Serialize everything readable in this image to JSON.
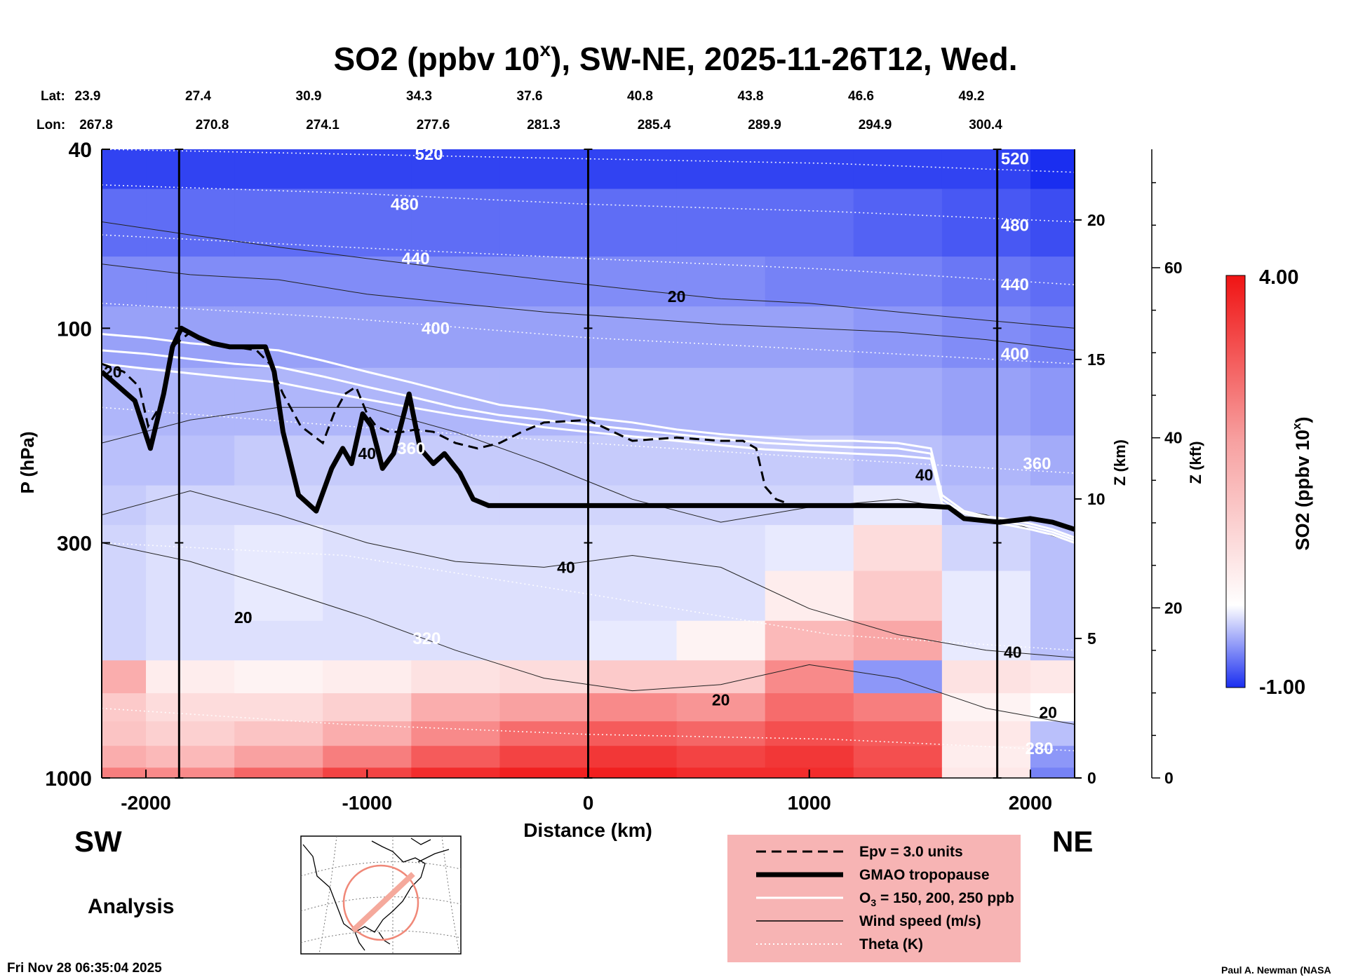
{
  "chart_data": {
    "type": "heatmap",
    "title": "SO2 (ppbv 10",
    "title_superscript": "x",
    "title_suffix": "), SW-NE, 2025-11-26T12, Wed.",
    "xlabel": "Distance (km)",
    "ylabel": "P (hPa)",
    "z_km_label": "Z (km)",
    "z_kft_label": "Z (kft)",
    "colorbar_label": "SO2 (ppbv 10",
    "colorbar_label_sup": "x",
    "colorbar_label_end": ")",
    "colorbar_range": [
      -1.0,
      4.0
    ],
    "colorbar_max_label": "4.00",
    "colorbar_min_label": "-1.00",
    "xlim": [
      -2200,
      2200
    ],
    "ylim": [
      1000,
      40
    ],
    "x_ticks": [
      -2000,
      -1000,
      0,
      1000,
      2000
    ],
    "x_tick_labels": [
      "-2000",
      "-1000",
      "0",
      "1000",
      "2000"
    ],
    "y_ticks": [
      40,
      100,
      300,
      1000
    ],
    "y_tick_labels": [
      "40",
      "100",
      "300",
      "1000"
    ],
    "z_km_ticks": [
      0,
      5,
      10,
      15,
      20
    ],
    "z_km_tick_labels": [
      "0",
      "5",
      "10",
      "15",
      "20"
    ],
    "z_kft_ticks": [
      0,
      20,
      40,
      60
    ],
    "z_kft_tick_labels": [
      "0",
      "20",
      "40",
      "60"
    ],
    "lat_label": "Lat:",
    "lon_label": "Lon:",
    "lat_values": [
      "23.9",
      "27.4",
      "30.9",
      "34.3",
      "37.6",
      "40.8",
      "43.8",
      "46.6",
      "49.2"
    ],
    "lon_values": [
      "267.8",
      "270.8",
      "274.1",
      "277.6",
      "281.3",
      "285.4",
      "289.9",
      "294.9",
      "300.4"
    ],
    "marker_distances_km": [
      -1850,
      0,
      1850
    ],
    "tropopause": {
      "name": "GMAO tropopause",
      "x": [
        -2200,
        -2050,
        -1980,
        -1920,
        -1880,
        -1840,
        -1760,
        -1700,
        -1620,
        -1460,
        -1420,
        -1380,
        -1310,
        -1230,
        -1160,
        -1110,
        -1070,
        -1020,
        -980,
        -930,
        -880,
        -810,
        -760,
        -700,
        -650,
        -580,
        -520,
        -450,
        -300,
        0,
        500,
        1000,
        1500,
        1630,
        1700,
        1860,
        2000,
        2100,
        2200
      ],
      "p": [
        125,
        145,
        185,
        140,
        110,
        100,
        105,
        108,
        110,
        110,
        125,
        170,
        235,
        255,
        205,
        185,
        200,
        155,
        165,
        205,
        190,
        140,
        185,
        200,
        190,
        210,
        240,
        248,
        248,
        248,
        248,
        248,
        248,
        250,
        265,
        270,
        265,
        270,
        280
      ]
    },
    "epv_contour": {
      "name": "Epv = 3.0 units",
      "x": [
        -2200,
        -2100,
        -2030,
        -1990,
        -1940,
        -1880,
        -1800,
        -1700,
        -1600,
        -1500,
        -1440,
        -1380,
        -1300,
        -1200,
        -1150,
        -1100,
        -1050,
        -1000,
        -960,
        -900,
        -840,
        -780,
        -700,
        -600,
        -500,
        -400,
        -300,
        -200,
        0,
        200,
        400,
        600,
        700,
        760,
        800,
        850,
        900
      ],
      "p": [
        120,
        125,
        135,
        165,
        150,
        110,
        102,
        108,
        110,
        112,
        120,
        140,
        165,
        180,
        155,
        140,
        135,
        155,
        165,
        170,
        170,
        168,
        170,
        180,
        185,
        180,
        170,
        162,
        160,
        178,
        175,
        178,
        178,
        185,
        225,
        240,
        245
      ]
    },
    "ozone_contours": {
      "name": "O3 = 150, 200, 250 ppb",
      "levels": [
        150,
        200,
        250
      ],
      "x": [
        -2200,
        -2000,
        -1800,
        -1600,
        -1400,
        -1200,
        -1000,
        -800,
        -600,
        -400,
        -200,
        0,
        200,
        400,
        600,
        800,
        1000,
        1200,
        1400,
        1550,
        1600,
        1700,
        1800,
        1900,
        2000,
        2100,
        2200
      ],
      "p": [
        [
          103,
          105,
          108,
          110,
          112,
          118,
          125,
          132,
          140,
          148,
          152,
          158,
          162,
          168,
          172,
          175,
          178,
          178,
          180,
          185,
          235,
          255,
          262,
          266,
          272,
          280,
          292
        ],
        [
          112,
          114,
          117,
          120,
          122,
          128,
          135,
          142,
          150,
          156,
          160,
          164,
          168,
          172,
          176,
          180,
          182,
          184,
          185,
          190,
          240,
          258,
          265,
          270,
          276,
          284,
          296
        ],
        [
          120,
          123,
          126,
          129,
          132,
          138,
          144,
          150,
          156,
          161,
          166,
          170,
          174,
          178,
          182,
          186,
          188,
          190,
          192,
          195,
          245,
          262,
          268,
          274,
          280,
          288,
          300
        ]
      ]
    },
    "wind_speed_contours": {
      "name": "Wind speed (m/s)",
      "label_values": [
        "20",
        "40",
        "40",
        "20",
        "40",
        "40",
        "20",
        "20",
        "20",
        "20"
      ],
      "label_points": [
        {
          "x": 400,
          "p": 85
        },
        {
          "x": -1000,
          "p": 190
        },
        {
          "x": 1520,
          "p": 212
        },
        {
          "x": -1560,
          "p": 440
        },
        {
          "x": -100,
          "p": 340
        },
        {
          "x": 1920,
          "p": 525
        },
        {
          "x": 600,
          "p": 670
        },
        {
          "x": -2150,
          "p": 125
        },
        {
          "x": 2080,
          "p": 715
        },
        {
          "x": -1560,
          "p": 440
        }
      ],
      "levels_x": [
        -2200,
        -1800,
        -1400,
        -1000,
        -600,
        -200,
        200,
        600,
        1000,
        1400,
        1800,
        2200
      ],
      "lines_p": [
        [
          58,
          62,
          66,
          70,
          74,
          78,
          82,
          86,
          88,
          92,
          96,
          100
        ],
        [
          72,
          76,
          78,
          84,
          88,
          92,
          95,
          98,
          100,
          102,
          106,
          112
        ],
        [
          180,
          160,
          150,
          150,
          170,
          200,
          240,
          270,
          250,
          240,
          260,
          300
        ],
        [
          260,
          230,
          260,
          300,
          330,
          340,
          320,
          340,
          420,
          480,
          520,
          540
        ],
        [
          300,
          330,
          380,
          440,
          520,
          600,
          640,
          620,
          560,
          600,
          700,
          760
        ]
      ]
    },
    "theta_contours": {
      "name": "Theta (K)",
      "levels": [
        520,
        480,
        440,
        400,
        360,
        320,
        280
      ],
      "label_values": [
        "520",
        "480",
        "440",
        "400",
        "360",
        "320",
        "520",
        "480",
        "440",
        "400",
        "360",
        "280"
      ],
      "label_points": [
        {
          "x": -720,
          "p": 41
        },
        {
          "x": -830,
          "p": 53
        },
        {
          "x": -780,
          "p": 70
        },
        {
          "x": -690,
          "p": 100
        },
        {
          "x": -800,
          "p": 185
        },
        {
          "x": -730,
          "p": 490
        },
        {
          "x": 1930,
          "p": 42
        },
        {
          "x": 1930,
          "p": 59
        },
        {
          "x": 1930,
          "p": 80
        },
        {
          "x": 1930,
          "p": 114
        },
        {
          "x": 2030,
          "p": 200
        },
        {
          "x": 2040,
          "p": 860
        }
      ],
      "x": [
        -2200,
        -1100,
        0,
        1100,
        2200
      ],
      "p": [
        [
          40,
          41,
          42,
          43,
          45
        ],
        [
          48,
          50,
          53,
          55,
          58
        ],
        [
          62,
          66,
          70,
          74,
          80
        ],
        [
          88,
          95,
          105,
          112,
          120
        ],
        [
          150,
          165,
          180,
          195,
          210
        ],
        [
          300,
          320,
          390,
          480,
          520
        ],
        [
          700,
          760,
          800,
          820,
          870
        ]
      ]
    },
    "so2_field": {
      "x": [
        -2200,
        -1800,
        -1400,
        -1000,
        -600,
        -200,
        200,
        600,
        1000,
        1400,
        1800,
        2200
      ],
      "p": [
        40,
        60,
        80,
        100,
        150,
        200,
        250,
        300,
        400,
        500,
        600,
        700,
        800,
        900,
        1000
      ],
      "values": [
        [
          -0.9,
          -0.9,
          -0.9,
          -0.9,
          -0.9,
          -0.9,
          -0.9,
          -0.9,
          -0.9,
          -0.9,
          -0.9,
          -1.0
        ],
        [
          -0.7,
          -0.7,
          -0.7,
          -0.7,
          -0.7,
          -0.7,
          -0.7,
          -0.7,
          -0.7,
          -0.75,
          -0.8,
          -0.85
        ],
        [
          -0.55,
          -0.55,
          -0.55,
          -0.55,
          -0.55,
          -0.55,
          -0.55,
          -0.55,
          -0.6,
          -0.6,
          -0.65,
          -0.7
        ],
        [
          -0.45,
          -0.45,
          -0.45,
          -0.45,
          -0.45,
          -0.45,
          -0.45,
          -0.45,
          -0.45,
          -0.5,
          -0.55,
          -0.6
        ],
        [
          -0.35,
          -0.35,
          -0.35,
          -0.35,
          -0.35,
          -0.35,
          -0.35,
          -0.35,
          -0.35,
          -0.4,
          -0.45,
          -0.5
        ],
        [
          -0.3,
          -0.3,
          -0.25,
          -0.25,
          -0.25,
          -0.25,
          -0.25,
          -0.25,
          -0.25,
          -0.3,
          -0.35,
          -0.4
        ],
        [
          -0.25,
          -0.2,
          -0.2,
          -0.2,
          -0.2,
          -0.2,
          -0.2,
          -0.2,
          -0.2,
          -0.1,
          -0.3,
          -0.3
        ],
        [
          -0.2,
          -0.15,
          -0.1,
          -0.15,
          -0.15,
          -0.15,
          -0.15,
          -0.15,
          -0.1,
          0.6,
          -0.2,
          -0.3
        ],
        [
          -0.2,
          -0.15,
          -0.1,
          -0.15,
          -0.15,
          -0.15,
          -0.15,
          -0.15,
          0.3,
          0.9,
          -0.1,
          -0.3
        ],
        [
          -0.2,
          -0.15,
          -0.15,
          -0.15,
          -0.15,
          -0.15,
          -0.1,
          0.2,
          1.2,
          1.5,
          -0.1,
          -0.3
        ],
        [
          1.4,
          0.3,
          0.2,
          0.3,
          0.5,
          0.6,
          0.9,
          0.9,
          2.0,
          -0.5,
          0.5,
          0.4
        ],
        [
          0.9,
          0.6,
          0.6,
          0.8,
          1.4,
          1.6,
          2.0,
          1.8,
          2.5,
          2.2,
          0.2,
          0.0
        ],
        [
          1.0,
          0.8,
          1.0,
          1.4,
          2.0,
          2.5,
          2.8,
          2.6,
          3.0,
          2.8,
          0.4,
          -0.3
        ],
        [
          1.4,
          1.2,
          1.6,
          2.2,
          2.8,
          3.2,
          3.4,
          3.2,
          3.4,
          3.0,
          0.3,
          -0.5
        ],
        [
          2.2,
          2.0,
          2.6,
          3.2,
          3.6,
          3.8,
          3.8,
          3.6,
          3.6,
          3.2,
          0.4,
          -0.6
        ]
      ]
    },
    "legend": [
      {
        "label": "Epv = 3.0 units",
        "style": "dashed"
      },
      {
        "label": "GMAO tropopause",
        "style": "thick"
      },
      {
        "label": "O",
        "label_sub": "3",
        "label_rest": " = 150, 200, 250 ppb",
        "style": "white"
      },
      {
        "label": "Wind speed (m/s)",
        "style": "thin"
      },
      {
        "label": "Theta (K)",
        "style": "dotted"
      }
    ],
    "legend_placement": "bottom-center",
    "sw_label": "SW",
    "ne_label": "NE",
    "analysis_label": "Analysis",
    "timestamp": "Fri Nov 28 06:35:04 2025",
    "credit": "Paul A. Newman (NASA"
  },
  "colors": {
    "so2_low": "#1a2ef0",
    "so2_mid": "#ffffff",
    "so2_high": "#f01414",
    "legend_bg": "#f7b4b4",
    "map_circle": "#f08878"
  }
}
